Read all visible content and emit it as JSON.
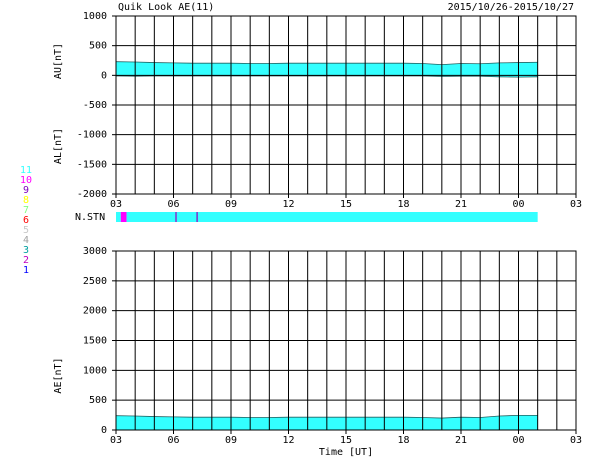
{
  "chart_data": [
    {
      "type": "area",
      "title": "Quik Look AE(11)",
      "date_range": "2015/10/26-2015/10/27",
      "ylabels": [
        "AU[nT]",
        "AL[nT]"
      ],
      "x": [
        3,
        4,
        5,
        6,
        7,
        8,
        9,
        10,
        11,
        12,
        13,
        14,
        15,
        16,
        17,
        18,
        19,
        20,
        21,
        22,
        23,
        24,
        25
      ],
      "series": [
        {
          "name": "AU",
          "color": "#33ffff",
          "values": [
            230,
            225,
            215,
            210,
            205,
            205,
            205,
            200,
            200,
            205,
            205,
            205,
            205,
            205,
            205,
            205,
            200,
            180,
            200,
            195,
            210,
            215,
            220
          ]
        },
        {
          "name": "AL",
          "color": "#33ffff",
          "values": [
            -10,
            -15,
            -10,
            -10,
            -10,
            -10,
            -10,
            -10,
            -10,
            -10,
            -10,
            -10,
            -10,
            -10,
            -10,
            -10,
            -10,
            -20,
            -15,
            -15,
            -25,
            -30,
            -25
          ]
        }
      ],
      "xlim": [
        3,
        27
      ],
      "xticks": [
        {
          "value": 3,
          "label": "03"
        },
        {
          "value": 6,
          "label": "06"
        },
        {
          "value": 9,
          "label": "09"
        },
        12,
        15,
        18,
        21,
        {
          "value": 24,
          "label": "00"
        },
        {
          "value": 27,
          "label": "03"
        }
      ],
      "xgridlines": [
        3,
        4,
        5,
        6,
        7,
        8,
        9,
        10,
        11,
        12,
        13,
        14,
        15,
        16,
        17,
        18,
        19,
        20,
        21,
        22,
        23,
        24,
        25,
        26,
        27
      ],
      "ylim": [
        -2000,
        1000
      ],
      "yticks": [
        -2000,
        -1500,
        -1000,
        -500,
        0,
        500,
        1000
      ]
    },
    {
      "type": "strip",
      "label": "N.STN",
      "station_counts": [
        11,
        10,
        9,
        8,
        7,
        6,
        5,
        4,
        3,
        2,
        1
      ],
      "colors": [
        "#33ffff",
        "#ff00ff",
        "#8000c0",
        "#ffff00",
        "#80ff80",
        "#ff0000",
        "#c8c8c8",
        "#a0a0a0",
        "#00a0a0",
        "#c000c0",
        "#0000ff"
      ],
      "segments": [
        {
          "start": 3,
          "end": 3.25,
          "stations": 11
        },
        {
          "start": 3.25,
          "end": 3.55,
          "stations": 10
        },
        {
          "start": 3.55,
          "end": 6.1,
          "stations": 11
        },
        {
          "start": 6.1,
          "end": 6.17,
          "stations": 9
        },
        {
          "start": 6.17,
          "end": 7.2,
          "stations": 11
        },
        {
          "start": 7.2,
          "end": 7.27,
          "stations": 9
        },
        {
          "start": 7.27,
          "end": 25,
          "stations": 11
        }
      ],
      "xlim": [
        3,
        27
      ]
    },
    {
      "type": "area",
      "ylabels": [
        "AE[nT]"
      ],
      "xlabel": "Time [UT]",
      "x": [
        3,
        4,
        5,
        6,
        7,
        8,
        9,
        10,
        11,
        12,
        13,
        14,
        15,
        16,
        17,
        18,
        19,
        20,
        21,
        22,
        23,
        24,
        25
      ],
      "series": [
        {
          "name": "AE",
          "color": "#33ffff",
          "values": [
            240,
            235,
            225,
            220,
            215,
            215,
            215,
            210,
            210,
            215,
            215,
            215,
            215,
            215,
            215,
            215,
            210,
            200,
            215,
            210,
            235,
            245,
            245
          ]
        }
      ],
      "xlim": [
        3,
        27
      ],
      "xticks": [
        {
          "value": 3,
          "label": "03"
        },
        {
          "value": 6,
          "label": "06"
        },
        {
          "value": 9,
          "label": "09"
        },
        12,
        15,
        18,
        21,
        {
          "value": 24,
          "label": "00"
        },
        {
          "value": 27,
          "label": "03"
        }
      ],
      "xgridlines": [
        3,
        4,
        5,
        6,
        7,
        8,
        9,
        10,
        11,
        12,
        13,
        14,
        15,
        16,
        17,
        18,
        19,
        20,
        21,
        22,
        23,
        24,
        25,
        26,
        27
      ],
      "ylim": [
        0,
        3000
      ],
      "yticks": [
        0,
        500,
        1000,
        1500,
        2000,
        2500,
        3000
      ]
    }
  ]
}
